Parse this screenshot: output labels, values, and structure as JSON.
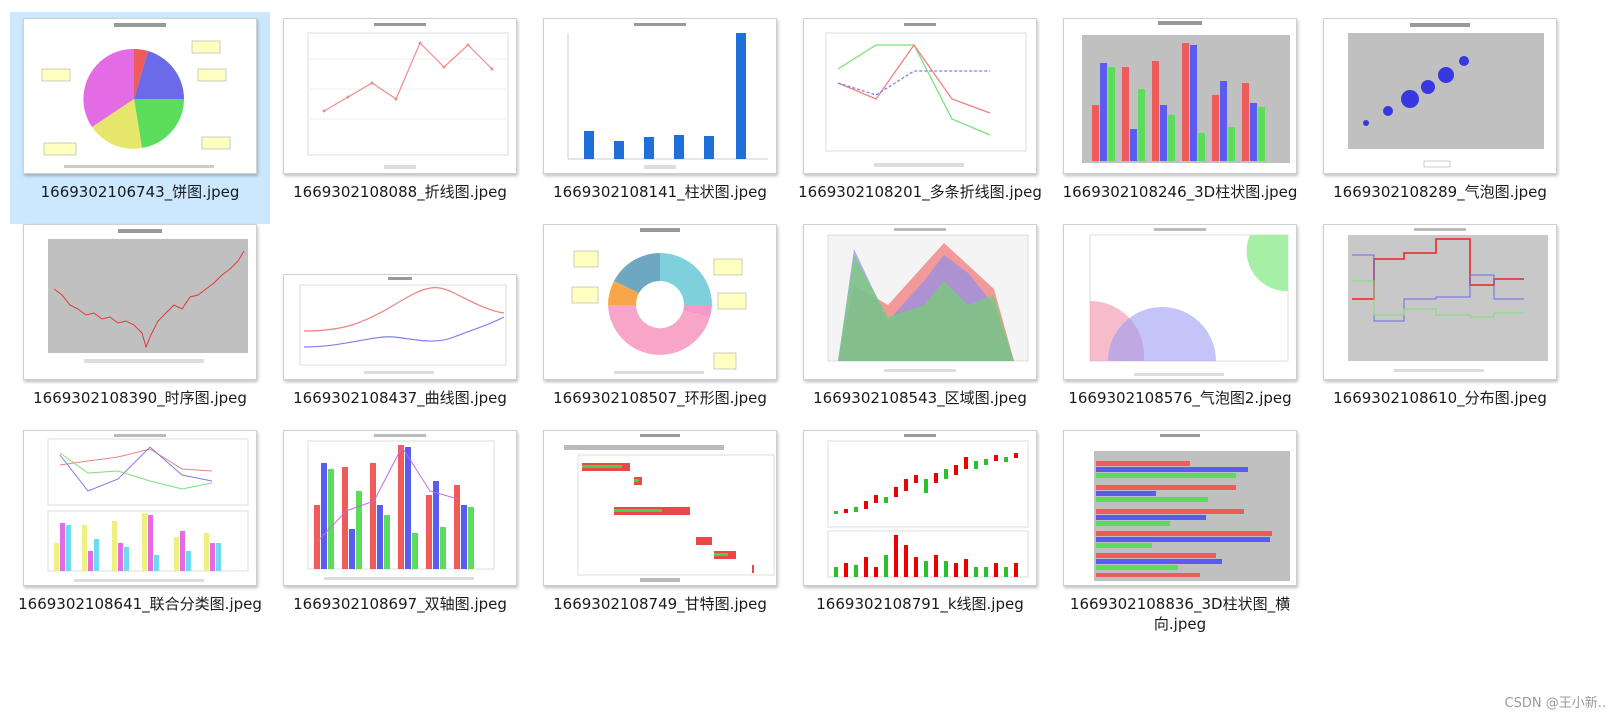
{
  "files": [
    {
      "name": "1669302106743_饼图.jpeg",
      "icon": "pie-chart-thumbnail"
    },
    {
      "name": "1669302108088_折线图.jpeg",
      "icon": "line-chart-thumbnail"
    },
    {
      "name": "1669302108141_柱状图.jpeg",
      "icon": "bar-chart-thumbnail"
    },
    {
      "name": "1669302108201_多条折线图.jpeg",
      "icon": "multi-line-chart-thumbnail"
    },
    {
      "name": "1669302108246_3D柱状图.jpeg",
      "icon": "3d-bar-chart-thumbnail"
    },
    {
      "name": "1669302108289_气泡图.jpeg",
      "icon": "bubble-chart-thumbnail"
    },
    {
      "name": "1669302108390_时序图.jpeg",
      "icon": "timeseries-chart-thumbnail"
    },
    {
      "name": "1669302108437_曲线图.jpeg",
      "icon": "curve-chart-thumbnail"
    },
    {
      "name": "1669302108507_环形图.jpeg",
      "icon": "donut-chart-thumbnail"
    },
    {
      "name": "1669302108543_区域图.jpeg",
      "icon": "area-chart-thumbnail"
    },
    {
      "name": "1669302108576_气泡图2.jpeg",
      "icon": "bubble-chart-2-thumbnail"
    },
    {
      "name": "1669302108610_分布图.jpeg",
      "icon": "step-chart-thumbnail"
    },
    {
      "name": "1669302108641_联合分类图.jpeg",
      "icon": "combined-category-chart-thumbnail"
    },
    {
      "name": "1669302108697_双轴图.jpeg",
      "icon": "dual-axis-chart-thumbnail"
    },
    {
      "name": "1669302108749_甘特图.jpeg",
      "icon": "gantt-chart-thumbnail"
    },
    {
      "name": "1669302108791_k线图.jpeg",
      "icon": "candlestick-chart-thumbnail"
    },
    {
      "name": "1669302108836_3D柱状图_横向.jpeg",
      "icon": "3d-horizontal-bar-chart-thumbnail"
    }
  ],
  "selected_index": 0,
  "watermark": "CSDN @王小新..",
  "colors": {
    "selection": "#cce8ff",
    "red": "#ef5b5b",
    "blue": "#5b5bef",
    "green": "#5bdc5b",
    "pink": "#f59ac8",
    "teal": "#7fd0dd",
    "orange": "#f8a64a",
    "yellow": "#e6e66a",
    "magenta": "#e36be3",
    "gray_plot": "#b8b8b8"
  }
}
